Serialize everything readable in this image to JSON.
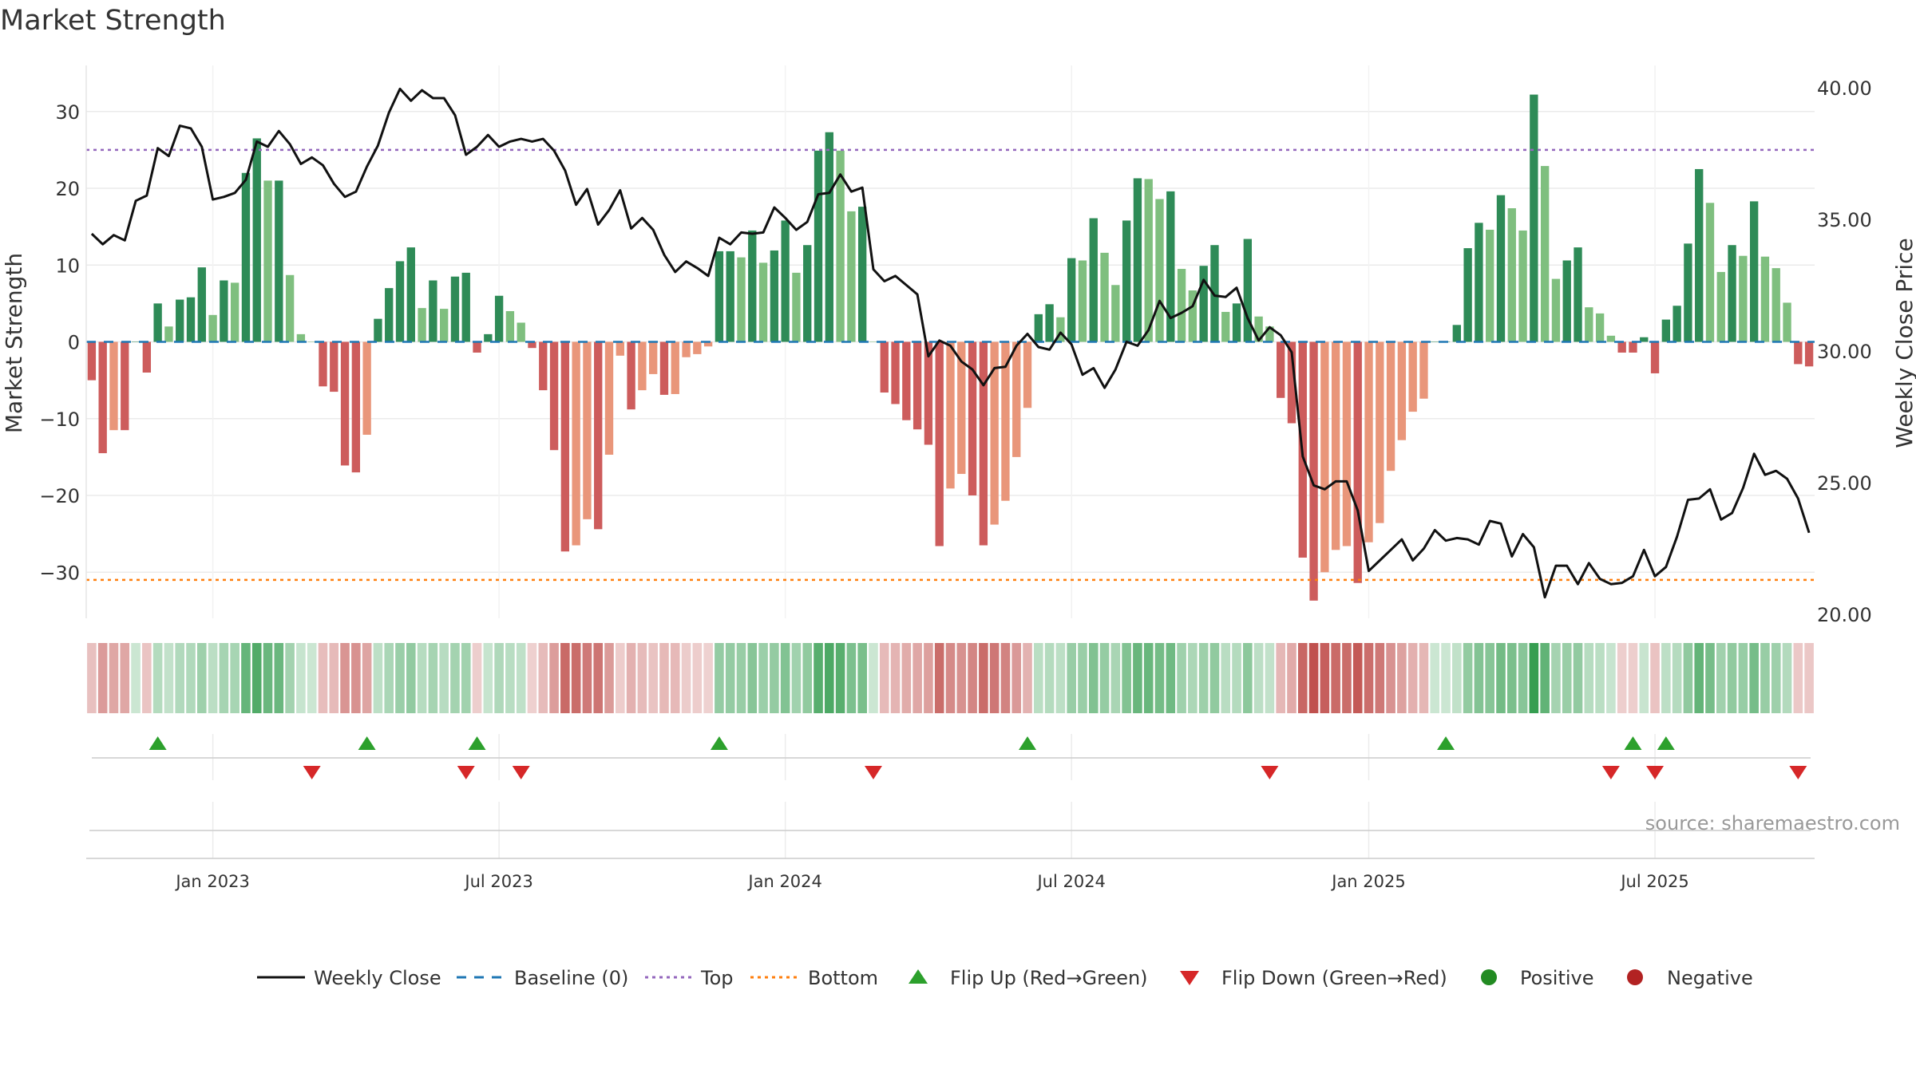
{
  "chart_data": {
    "type": "bar",
    "title": "Market Strength",
    "ylabel": "Market Strength",
    "y2label": "Weekly Close Price",
    "source": "source: sharemaestro.com",
    "ylim": [
      -36,
      36
    ],
    "yticks": [
      30,
      20,
      10,
      0,
      -10,
      -20,
      -30
    ],
    "ytick_labels": [
      "30",
      "20",
      "10",
      "0",
      "−10",
      "−20",
      "−30"
    ],
    "y2lim": [
      20,
      40
    ],
    "y2ticks": [
      40,
      35,
      30,
      25,
      20
    ],
    "y2tick_labels": [
      "40.00",
      "35.00",
      "30.00",
      "25.00",
      "20.00"
    ],
    "top_level": 25,
    "bottom_level": -31,
    "grid": true,
    "start_week": "2022-10-17",
    "xtick_dates": [
      "2023-01-02",
      "2023-07-03",
      "2024-01-01",
      "2024-07-01",
      "2025-01-06",
      "2025-07-07"
    ],
    "xtick_labels": [
      "Jan 2023",
      "Jul 2023",
      "Jan 2024",
      "Jul 2024",
      "Jan 2025",
      "Jul 2025"
    ],
    "strength": [
      -5,
      -14.5,
      -11.5,
      -11.5,
      0,
      -4,
      5,
      2,
      5.5,
      5.8,
      9.7,
      3.5,
      8,
      7.7,
      22,
      26.5,
      21,
      21,
      8.7,
      1,
      0,
      -5.8,
      -6.5,
      -16.1,
      -17,
      -12.1,
      3,
      7,
      10.5,
      12.3,
      4.4,
      8,
      4.3,
      8.5,
      9,
      -1.4,
      1,
      6,
      4,
      2.5,
      -0.8,
      -6.3,
      -14.1,
      -27.3,
      -26.5,
      -23.1,
      -24.4,
      -14.7,
      -1.8,
      -8.8,
      -6.3,
      -4.2,
      -6.9,
      -6.8,
      -2,
      -1.6,
      -0.6,
      11.8,
      11.8,
      11,
      14.5,
      10.3,
      11.9,
      15.8,
      9,
      12.6,
      24.9,
      27.3,
      24.9,
      17,
      17.6,
      0,
      -6.6,
      -8.1,
      -10.2,
      -11.4,
      -13.4,
      -26.6,
      -19.1,
      -17.2,
      -20,
      -26.5,
      -23.8,
      -20.7,
      -15,
      -8.6,
      3.6,
      4.9,
      3.2,
      10.9,
      10.6,
      16.1,
      11.6,
      7.4,
      15.8,
      21.3,
      21.2,
      18.6,
      19.6,
      9.5,
      6.7,
      9.9,
      12.6,
      3.9,
      5,
      13.4,
      3.3,
      2,
      -7.3,
      -10.6,
      -28.1,
      -33.7,
      -30,
      -27.1,
      -26.6,
      -31.4,
      -26.1,
      -23.6,
      -16.8,
      -12.8,
      -9.1,
      -7.4,
      0,
      0,
      2.2,
      12.2,
      15.5,
      14.6,
      19.1,
      17.4,
      14.5,
      32.2,
      22.9,
      8.2,
      10.6,
      12.3,
      4.5,
      3.7,
      0.8,
      -1.4,
      -1.4,
      0.6,
      -4.1,
      2.9,
      4.7,
      12.8,
      22.5,
      18.1,
      9.1,
      12.6,
      11.2,
      18.3,
      11.1,
      9.6,
      5.1,
      -2.9,
      -3.2
    ],
    "price": [
      34.45,
      34.05,
      34.4,
      34.2,
      35.7,
      35.9,
      37.7,
      37.4,
      38.55,
      38.45,
      37.75,
      35.75,
      35.85,
      36,
      36.5,
      37.95,
      37.75,
      38.35,
      37.85,
      37.1,
      37.35,
      37.05,
      36.35,
      35.85,
      36.05,
      37,
      37.8,
      39.05,
      39.95,
      39.5,
      39.9,
      39.6,
      39.6,
      38.95,
      37.45,
      37.75,
      38.2,
      37.75,
      37.95,
      38.05,
      37.95,
      38.05,
      37.6,
      36.85,
      35.55,
      36.15,
      34.8,
      35.35,
      36.1,
      34.65,
      35.05,
      34.6,
      33.65,
      33,
      33.4,
      33.15,
      32.85,
      34.3,
      34.05,
      34.5,
      34.45,
      34.5,
      35.45,
      35.05,
      34.6,
      34.9,
      35.95,
      36,
      36.7,
      36.05,
      36.2,
      33.1,
      32.65,
      32.85,
      32.5,
      32.15,
      29.8,
      30.4,
      30.2,
      29.6,
      29.3,
      28.7,
      29.35,
      29.4,
      30.2,
      30.65,
      30.15,
      30.05,
      30.7,
      30.25,
      29.1,
      29.35,
      28.6,
      29.3,
      30.35,
      30.2,
      30.8,
      31.9,
      31.25,
      31.45,
      31.7,
      32.7,
      32.1,
      32.05,
      32.4,
      31.25,
      30.4,
      30.9,
      30.6,
      29.95,
      26,
      24.9,
      24.75,
      25.05,
      25.05,
      23.95,
      21.65,
      22.05,
      22.45,
      22.85,
      22.05,
      22.5,
      23.2,
      22.8,
      22.9,
      22.85,
      22.65,
      23.55,
      23.45,
      22.2,
      23.05,
      22.55,
      20.65,
      21.85,
      21.85,
      21.15,
      21.95,
      21.35,
      21.15,
      21.2,
      21.45,
      22.45,
      21.45,
      21.8,
      22.95,
      24.35,
      24.4,
      24.75,
      23.6,
      23.85,
      24.8,
      26.1,
      25.3,
      25.45,
      25.15,
      24.4,
      23.1
    ],
    "flip_up_weeks": [
      6,
      25,
      35,
      57,
      85,
      123,
      140,
      143
    ],
    "flip_down_weeks": [
      20,
      34,
      39,
      71,
      107,
      138,
      142,
      155
    ],
    "legend": [
      "Weekly Close",
      "Baseline (0)",
      "Top",
      "Bottom",
      "Flip Up (Red→Green)",
      "Flip Down (Green→Red)",
      "Positive",
      "Negative"
    ],
    "legend_placement": "bottom-center",
    "colors": {
      "positive_dark": "#2e8b57",
      "positive_light": "#7fbf7f",
      "negative_dark": "#cd5c5c",
      "negative_light": "#e9967a",
      "price_line": "#111111",
      "baseline": "#1f77b4",
      "top": "#9467bd",
      "bottom": "#ff7f0e",
      "flip_up": "#2ca02c",
      "flip_down": "#d62728",
      "legend_positive": "#228b22",
      "legend_negative": "#b22222"
    }
  }
}
